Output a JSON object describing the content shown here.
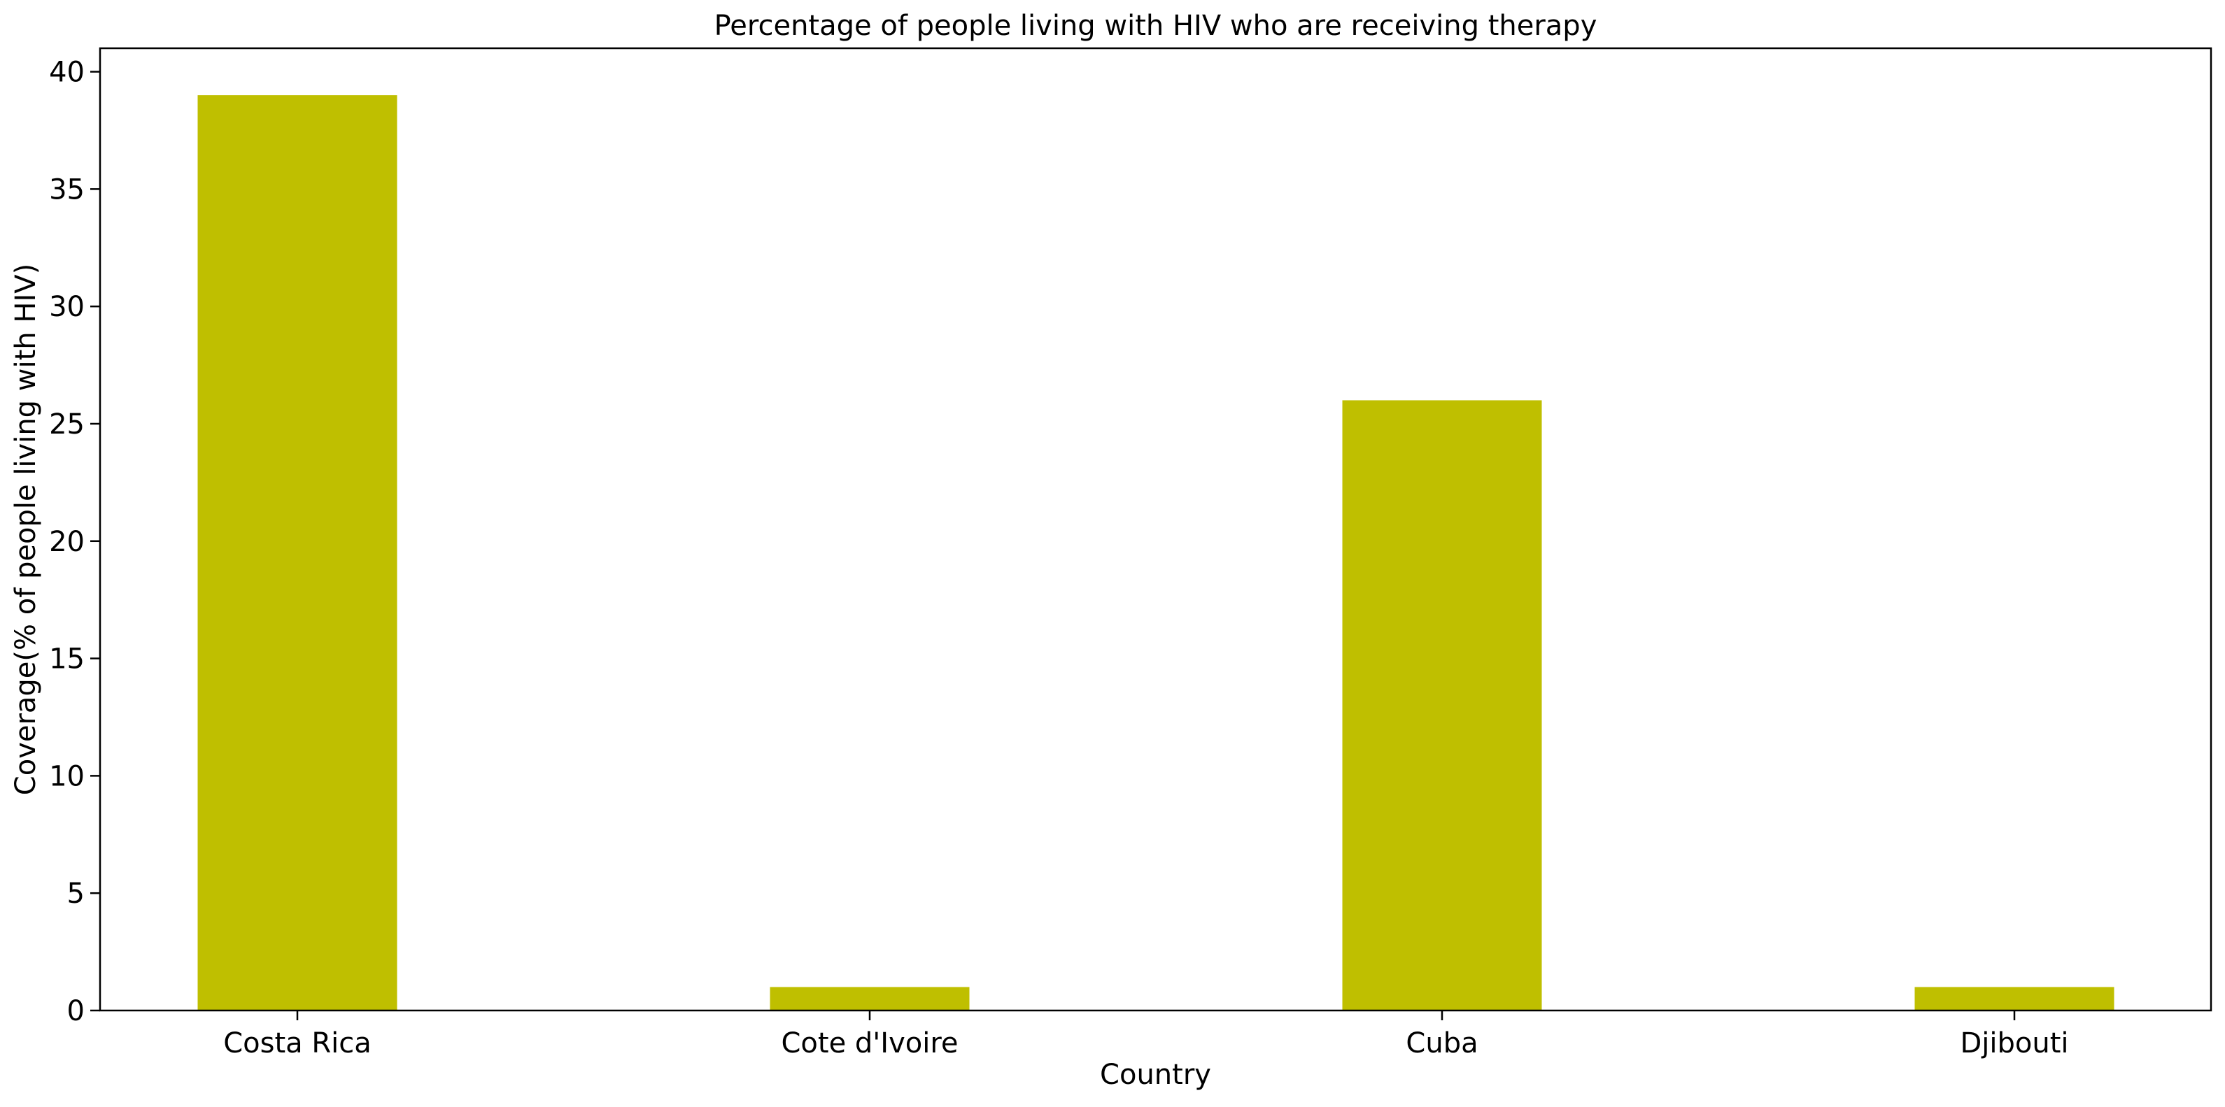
{
  "chart_data": {
    "type": "bar",
    "title": "Percentage of people living with HIV who are receiving therapy",
    "xlabel": "Country",
    "ylabel": "Coverage(% of people living with HIV)",
    "categories": [
      "Costa Rica",
      "Cote d'Ivoire",
      "Cuba",
      "Djibouti"
    ],
    "values": [
      39,
      1,
      26,
      1
    ],
    "ylim": [
      0,
      41
    ],
    "yticks": [
      "0",
      "5",
      "10",
      "15",
      "20",
      "25",
      "30",
      "35",
      "40"
    ],
    "grid": false,
    "legend": "none",
    "bar_color": "#bfbf00"
  }
}
